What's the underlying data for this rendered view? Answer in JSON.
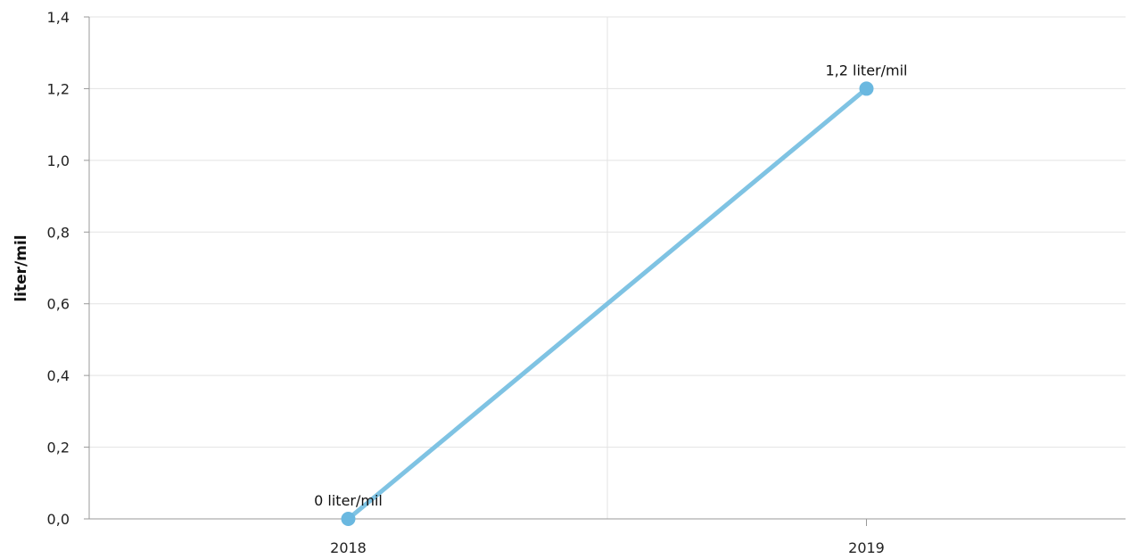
{
  "chart_data": {
    "type": "line",
    "title": "",
    "xlabel": "",
    "ylabel": "liter/mil",
    "categories": [
      "2018",
      "2019"
    ],
    "series": [
      {
        "values": [
          0,
          1.2
        ],
        "data_labels": [
          "0 liter/mil",
          "1,2 liter/mil"
        ],
        "color": "#7fc3e3",
        "marker_color": "#6ab8e0"
      }
    ],
    "ylim": [
      0,
      1.4
    ],
    "yticks": [
      0,
      0.2,
      0.4,
      0.6,
      0.8,
      1.0,
      1.2,
      1.4
    ],
    "ytick_labels": [
      "0,0",
      "0,2",
      "0,4",
      "0,6",
      "0,8",
      "1,0",
      "1,2",
      "1,4"
    ],
    "grid": true,
    "legend": "none"
  }
}
